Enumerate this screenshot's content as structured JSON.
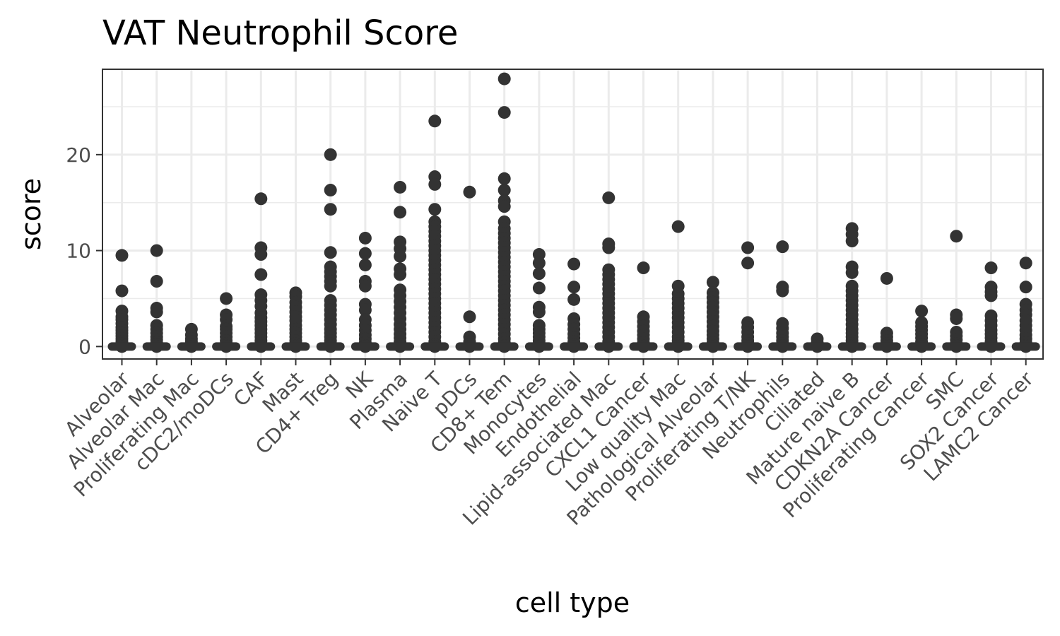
{
  "chart_data": {
    "type": "scatter",
    "title": "VAT Neutrophil Score",
    "xlabel": "cell type",
    "ylabel": "score",
    "ylim": [
      -1.3,
      28.9
    ],
    "yticks": [
      0,
      10,
      20
    ],
    "grid": true,
    "legend": "none",
    "colors": {
      "point": "#333333",
      "grid": "#ebebeb",
      "panel_border": "#333333",
      "tick_label": "#4d4d4d"
    },
    "categories": [
      "Alveolar",
      "Alveolar Mac",
      "Proliferating Mac",
      "cDC2/moDCs",
      "CAF",
      "Mast",
      "CD4+ Treg",
      "NK",
      "Plasma",
      "Naive T",
      "pDCs",
      "CD8+ Tem",
      "Monocytes",
      "Endothelial",
      "Lipid-associated Mac",
      "CXCL1 Cancer",
      "Low quality Mac",
      "Pathological Alveolar",
      "Proliferating T/NK",
      "Neutrophils",
      "Ciliated",
      "Mature naive B",
      "CDKN2A Cancer",
      "Proliferating Cancer",
      "SMC",
      "SOX2 Cancer",
      "LAMC2 Cancer"
    ],
    "series": [
      {
        "values": [
          [
            9.5,
            5.8,
            3.7,
            3.1,
            2.8,
            2.4,
            2.0,
            1.7,
            1.4,
            1.1,
            0.8,
            0.5,
            0.3,
            0.1,
            0
          ],
          [
            10.0,
            6.8,
            4.0,
            3.6,
            2.2,
            1.8,
            1.4,
            1.0,
            0.7,
            0.4,
            0.2,
            0
          ],
          [
            1.8,
            1.2,
            0.8,
            0.5,
            0.2,
            0
          ],
          [
            5.0,
            3.3,
            2.8,
            2.1,
            1.8,
            1.4,
            1.0,
            0.6,
            0.3,
            0.1,
            0
          ],
          [
            15.4,
            10.3,
            9.6,
            7.5,
            5.4,
            4.8,
            4.2,
            3.5,
            3.0,
            2.6,
            2.2,
            1.8,
            1.4,
            1.0,
            0.6,
            0.3,
            0.1,
            0
          ],
          [
            5.6,
            5.2,
            4.6,
            4.1,
            3.6,
            3.1,
            2.7,
            2.2,
            1.8,
            1.4,
            1.0,
            0.6,
            0.3,
            0.1,
            0
          ],
          [
            20.0,
            16.3,
            14.3,
            9.8,
            8.3,
            7.8,
            7.3,
            6.8,
            6.3,
            4.8,
            4.3,
            3.8,
            3.3,
            2.8,
            2.3,
            1.8,
            1.4,
            1.0,
            0.6,
            0.3,
            0.1,
            0
          ],
          [
            11.3,
            9.7,
            8.5,
            6.8,
            6.3,
            4.4,
            3.8,
            2.8,
            2.2,
            1.7,
            1.2,
            0.8,
            0.4,
            0.1,
            0
          ],
          [
            16.6,
            14.0,
            10.9,
            10.2,
            9.4,
            8.1,
            7.5,
            5.9,
            5.3,
            4.7,
            4.1,
            3.5,
            2.9,
            2.3,
            1.8,
            1.3,
            0.9,
            0.5,
            0.2,
            0
          ],
          [
            23.5,
            17.7,
            16.9,
            14.3,
            13.0,
            12.5,
            12.0,
            11.5,
            11.0,
            10.5,
            10.0,
            9.5,
            9.0,
            8.5,
            8.0,
            7.5,
            7.0,
            6.5,
            6.0,
            5.5,
            5.0,
            4.5,
            4.0,
            3.5,
            3.0,
            2.5,
            2.0,
            1.5,
            1.0,
            0.5,
            0.2,
            0
          ],
          [
            16.1,
            3.1,
            1.0,
            0.5,
            0.2,
            0
          ],
          [
            27.9,
            24.4,
            17.5,
            16.3,
            15.2,
            14.6,
            13.0,
            12.3,
            11.8,
            11.3,
            10.8,
            10.3,
            9.8,
            9.3,
            8.8,
            8.3,
            7.8,
            7.3,
            6.8,
            6.3,
            5.8,
            5.3,
            4.8,
            4.3,
            3.8,
            3.3,
            2.8,
            2.3,
            1.8,
            1.3,
            0.8,
            0.4,
            0.1,
            0
          ],
          [
            9.6,
            8.7,
            7.6,
            6.1,
            4.1,
            3.6,
            2.2,
            1.8,
            1.4,
            1.0,
            0.6,
            0.3,
            0.1,
            0
          ],
          [
            8.6,
            6.2,
            4.9,
            2.9,
            2.3,
            1.8,
            1.3,
            0.9,
            0.5,
            0.2,
            0
          ],
          [
            15.5,
            10.7,
            10.3,
            8.0,
            7.5,
            7.0,
            6.5,
            6.0,
            5.5,
            5.0,
            4.5,
            4.0,
            3.5,
            3.0,
            2.5,
            2.0,
            1.5,
            1.0,
            0.5,
            0.2,
            0
          ],
          [
            8.2,
            3.1,
            2.6,
            2.1,
            1.6,
            1.2,
            0.8,
            0.4,
            0.1,
            0
          ],
          [
            12.5,
            6.3,
            5.5,
            5.0,
            4.5,
            4.0,
            3.5,
            3.0,
            2.5,
            2.0,
            1.5,
            1.0,
            0.6,
            0.3,
            0.1,
            0
          ],
          [
            6.7,
            5.6,
            5.1,
            4.6,
            4.1,
            3.6,
            3.1,
            2.6,
            2.1,
            1.6,
            1.2,
            0.8,
            0.4,
            0.1,
            0
          ],
          [
            10.3,
            8.7,
            2.5,
            2.0,
            1.5,
            1.0,
            0.6,
            0.3,
            0.1,
            0
          ],
          [
            10.4,
            6.2,
            5.8,
            2.4,
            1.9,
            1.4,
            1.0,
            0.6,
            0.3,
            0.1,
            0
          ],
          [
            0.8,
            0.4,
            0.1,
            0
          ],
          [
            12.3,
            11.7,
            11.0,
            8.3,
            7.7,
            6.3,
            5.8,
            5.3,
            4.8,
            4.3,
            3.8,
            3.3,
            2.8,
            2.3,
            1.8,
            1.4,
            1.0,
            0.6,
            0.3,
            0.1,
            0
          ],
          [
            7.1,
            1.4,
            1.0,
            0.6,
            0.3,
            0.1,
            0
          ],
          [
            3.7,
            2.5,
            2.1,
            1.7,
            1.3,
            0.9,
            0.5,
            0.2,
            0
          ],
          [
            11.5,
            3.3,
            2.9,
            1.5,
            1.1,
            0.7,
            0.3,
            0.1,
            0
          ],
          [
            8.2,
            6.2,
            5.7,
            5.3,
            3.2,
            2.7,
            2.2,
            1.7,
            1.3,
            0.9,
            0.5,
            0.2,
            0
          ],
          [
            8.7,
            6.2,
            4.4,
            3.8,
            3.3,
            2.7,
            2.2,
            1.7,
            1.2,
            0.8,
            0.4,
            0.1,
            0
          ]
        ]
      }
    ]
  }
}
